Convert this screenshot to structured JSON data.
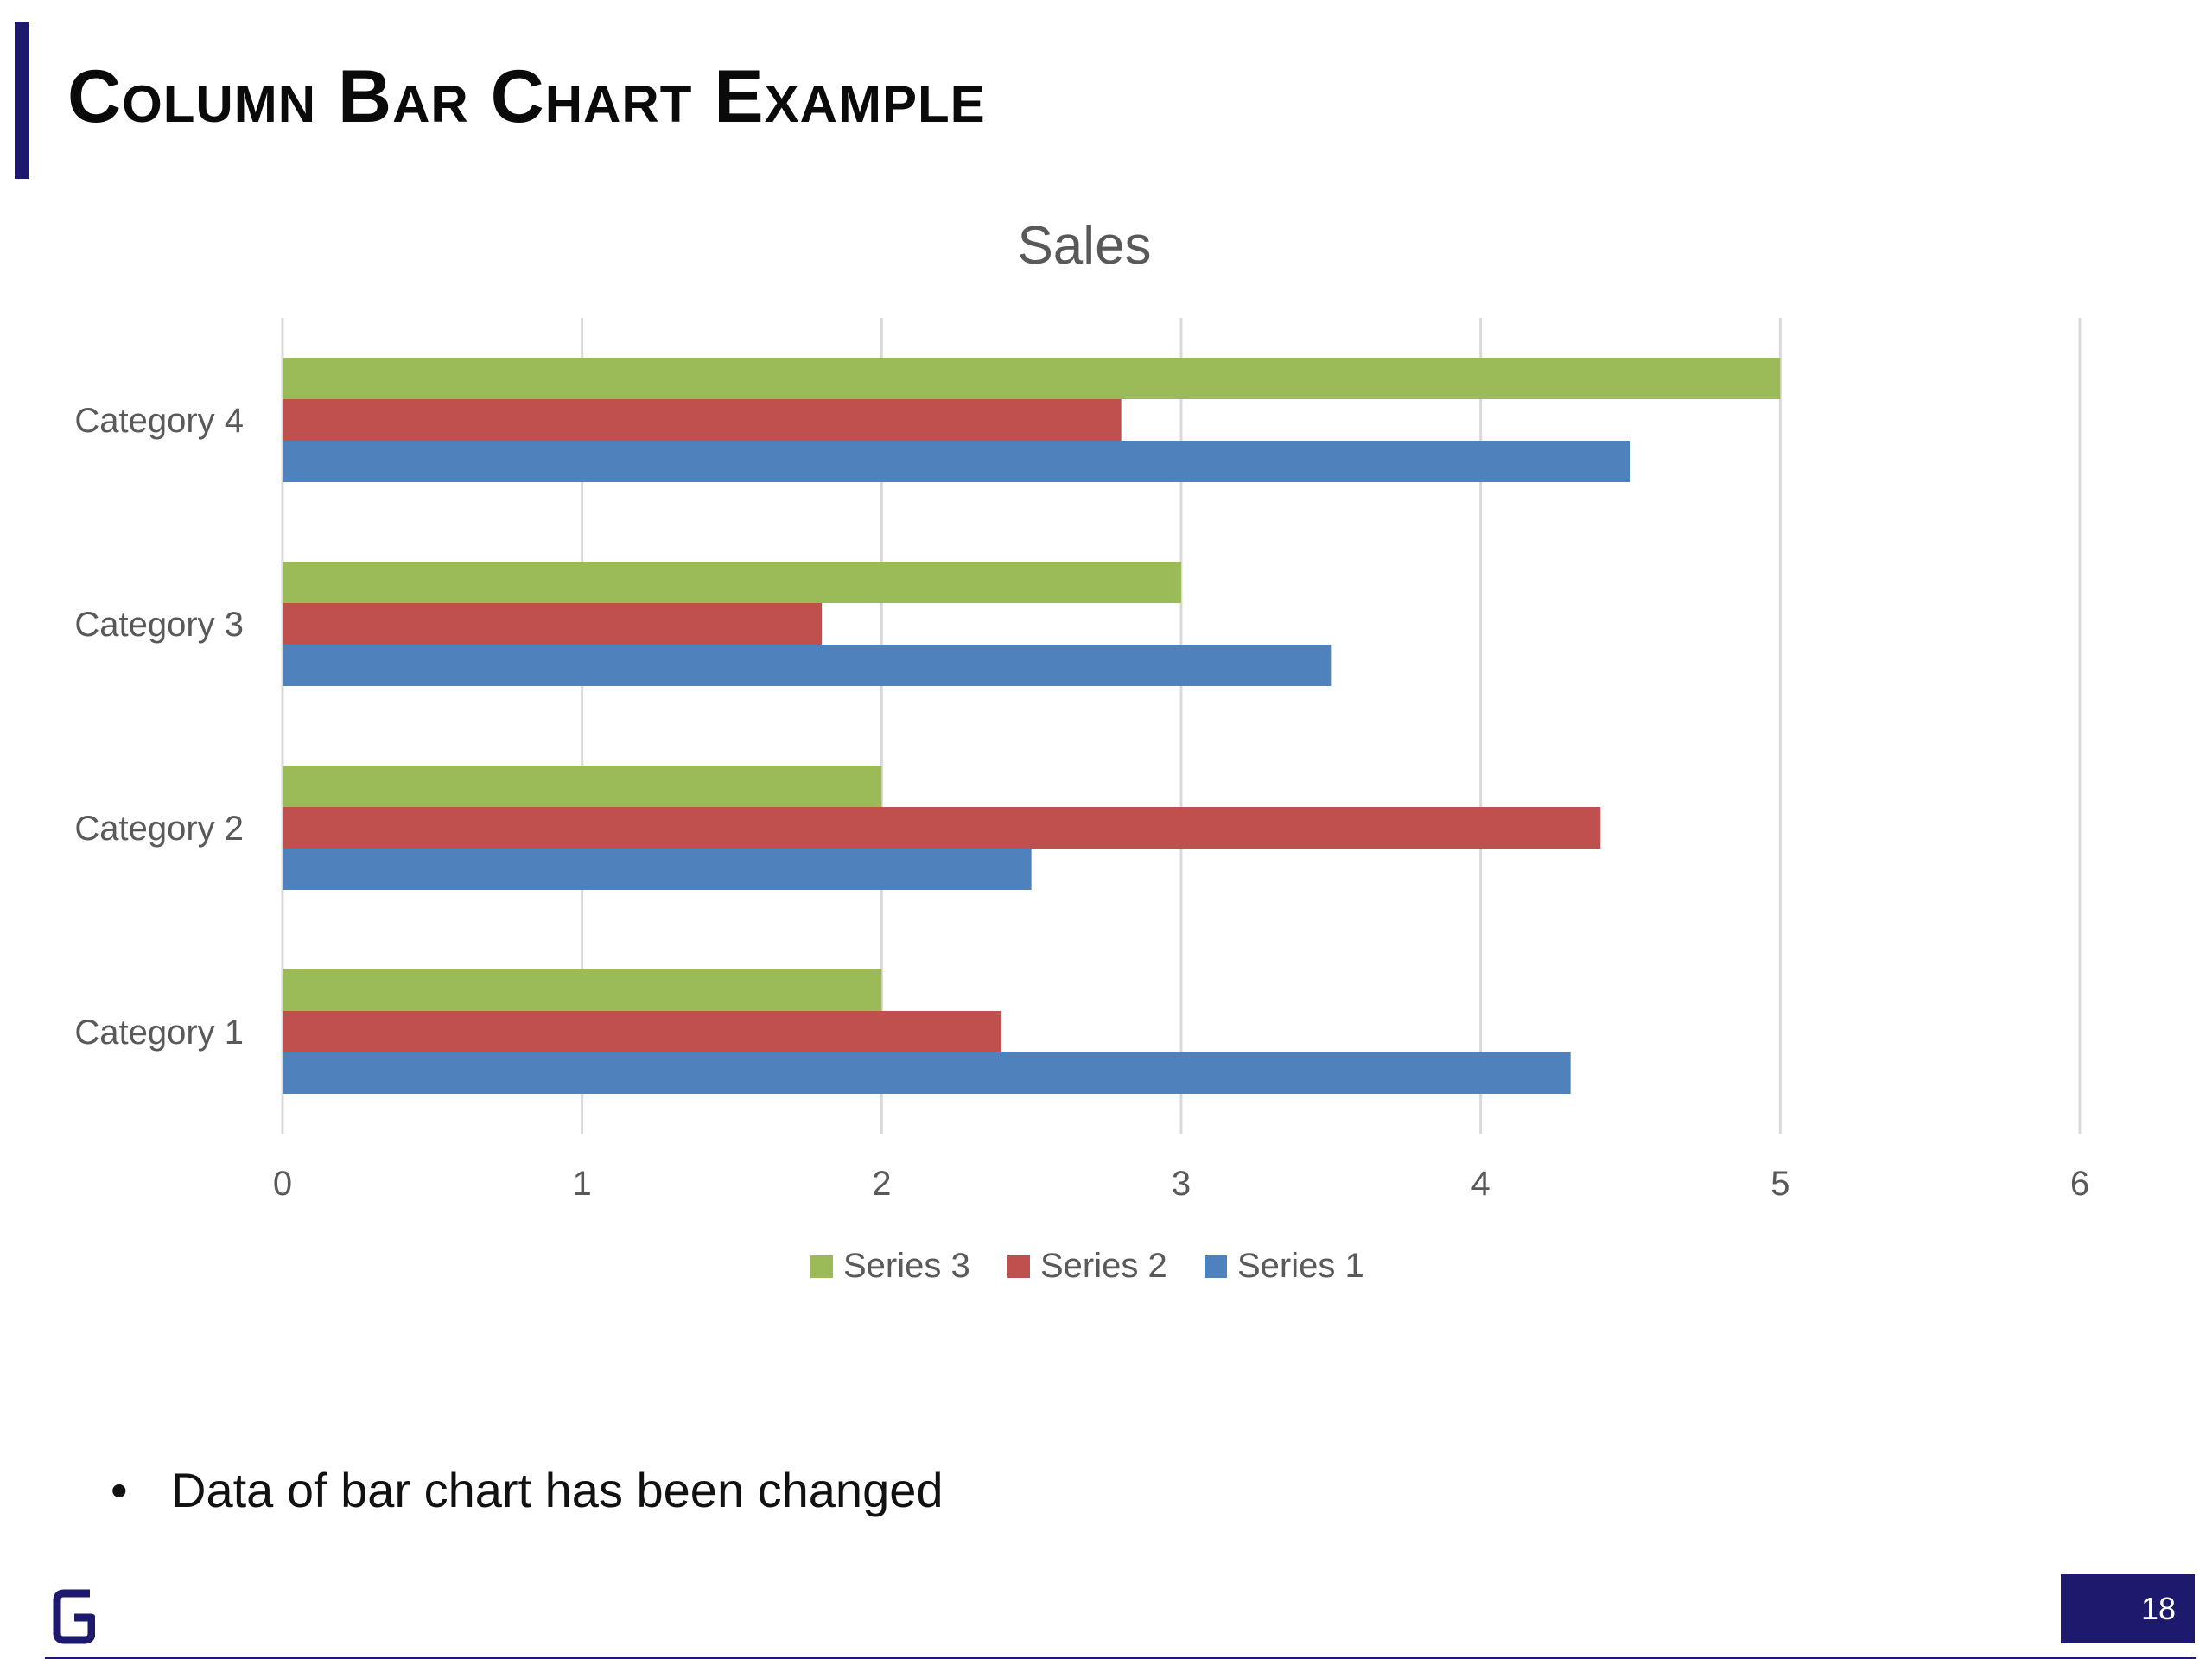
{
  "slide": {
    "title": "Column Bar Chart Example",
    "bullet": "Data of bar chart has been changed",
    "page_number": "18",
    "accent_color": "#1d1a6e"
  },
  "chart_data": {
    "type": "bar",
    "orientation": "horizontal",
    "title": "Sales",
    "categories": [
      "Category 1",
      "Category 2",
      "Category 3",
      "Category 4"
    ],
    "series": [
      {
        "name": "Series 1",
        "color": "#4f81bd",
        "values": [
          4.3,
          2.5,
          3.5,
          4.5
        ]
      },
      {
        "name": "Series 2",
        "color": "#c0504d",
        "values": [
          2.4,
          4.4,
          1.8,
          2.8
        ]
      },
      {
        "name": "Series 3",
        "color": "#9bbb59",
        "values": [
          2,
          2,
          3,
          5
        ]
      }
    ],
    "xlim": [
      0,
      6
    ],
    "x_ticks": [
      0,
      1,
      2,
      3,
      4,
      5,
      6
    ],
    "grid": true,
    "legend": "bottom",
    "legend_order": [
      "Series 3",
      "Series 2",
      "Series 1"
    ]
  }
}
